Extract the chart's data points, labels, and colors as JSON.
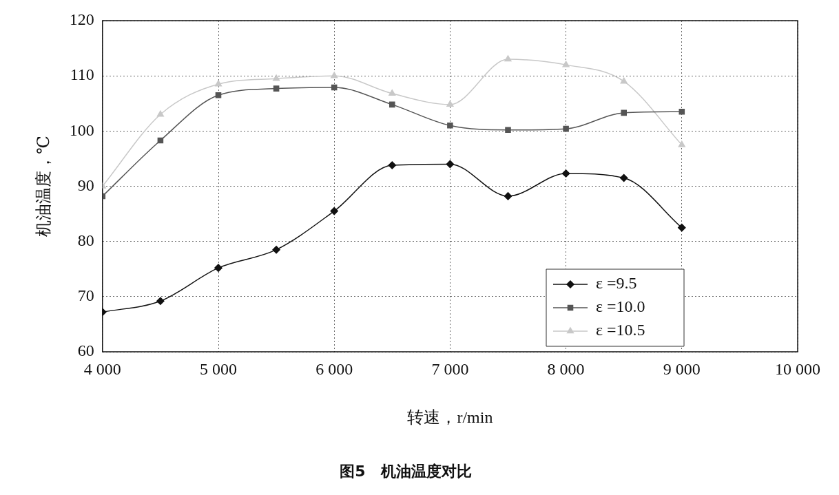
{
  "chart_data": {
    "type": "line",
    "title": "图5　机油温度对比",
    "xlabel": "转速，r/min",
    "ylabel": "机油温度，℃",
    "x": [
      4000,
      4500,
      5000,
      5500,
      6000,
      6500,
      7000,
      7500,
      8000,
      8500,
      9000
    ],
    "series": [
      {
        "name": "ε =9.5",
        "color": "#111111",
        "marker": "diamond",
        "values": [
          67.2,
          69.2,
          75.2,
          78.5,
          85.5,
          93.8,
          94.0,
          88.2,
          92.3,
          91.5,
          82.5
        ]
      },
      {
        "name": "ε =10.0",
        "color": "#555555",
        "marker": "square",
        "values": [
          88.2,
          98.3,
          106.5,
          107.7,
          107.9,
          104.8,
          101.0,
          100.2,
          100.4,
          103.3,
          103.5
        ]
      },
      {
        "name": "ε =10.5",
        "color": "#c8c8c8",
        "marker": "triangle",
        "values": [
          90.0,
          103.0,
          108.5,
          109.5,
          110.0,
          106.8,
          104.8,
          113.0,
          112.0,
          109.0,
          97.5
        ]
      }
    ],
    "xlim": [
      4000,
      10000
    ],
    "xticks": [
      {
        "value": 4000,
        "label": "4 000"
      },
      {
        "value": 5000,
        "label": "5 000"
      },
      {
        "value": 6000,
        "label": "6 000"
      },
      {
        "value": 7000,
        "label": "7 000"
      },
      {
        "value": 8000,
        "label": "8 000"
      },
      {
        "value": 9000,
        "label": "9 000"
      },
      {
        "value": 10000,
        "label": "10 000"
      }
    ],
    "ylim": [
      60,
      120
    ],
    "yticks": [
      60,
      70,
      80,
      90,
      100,
      110,
      120
    ],
    "grid": true,
    "legend": "bottom right",
    "line_style": "solid"
  }
}
